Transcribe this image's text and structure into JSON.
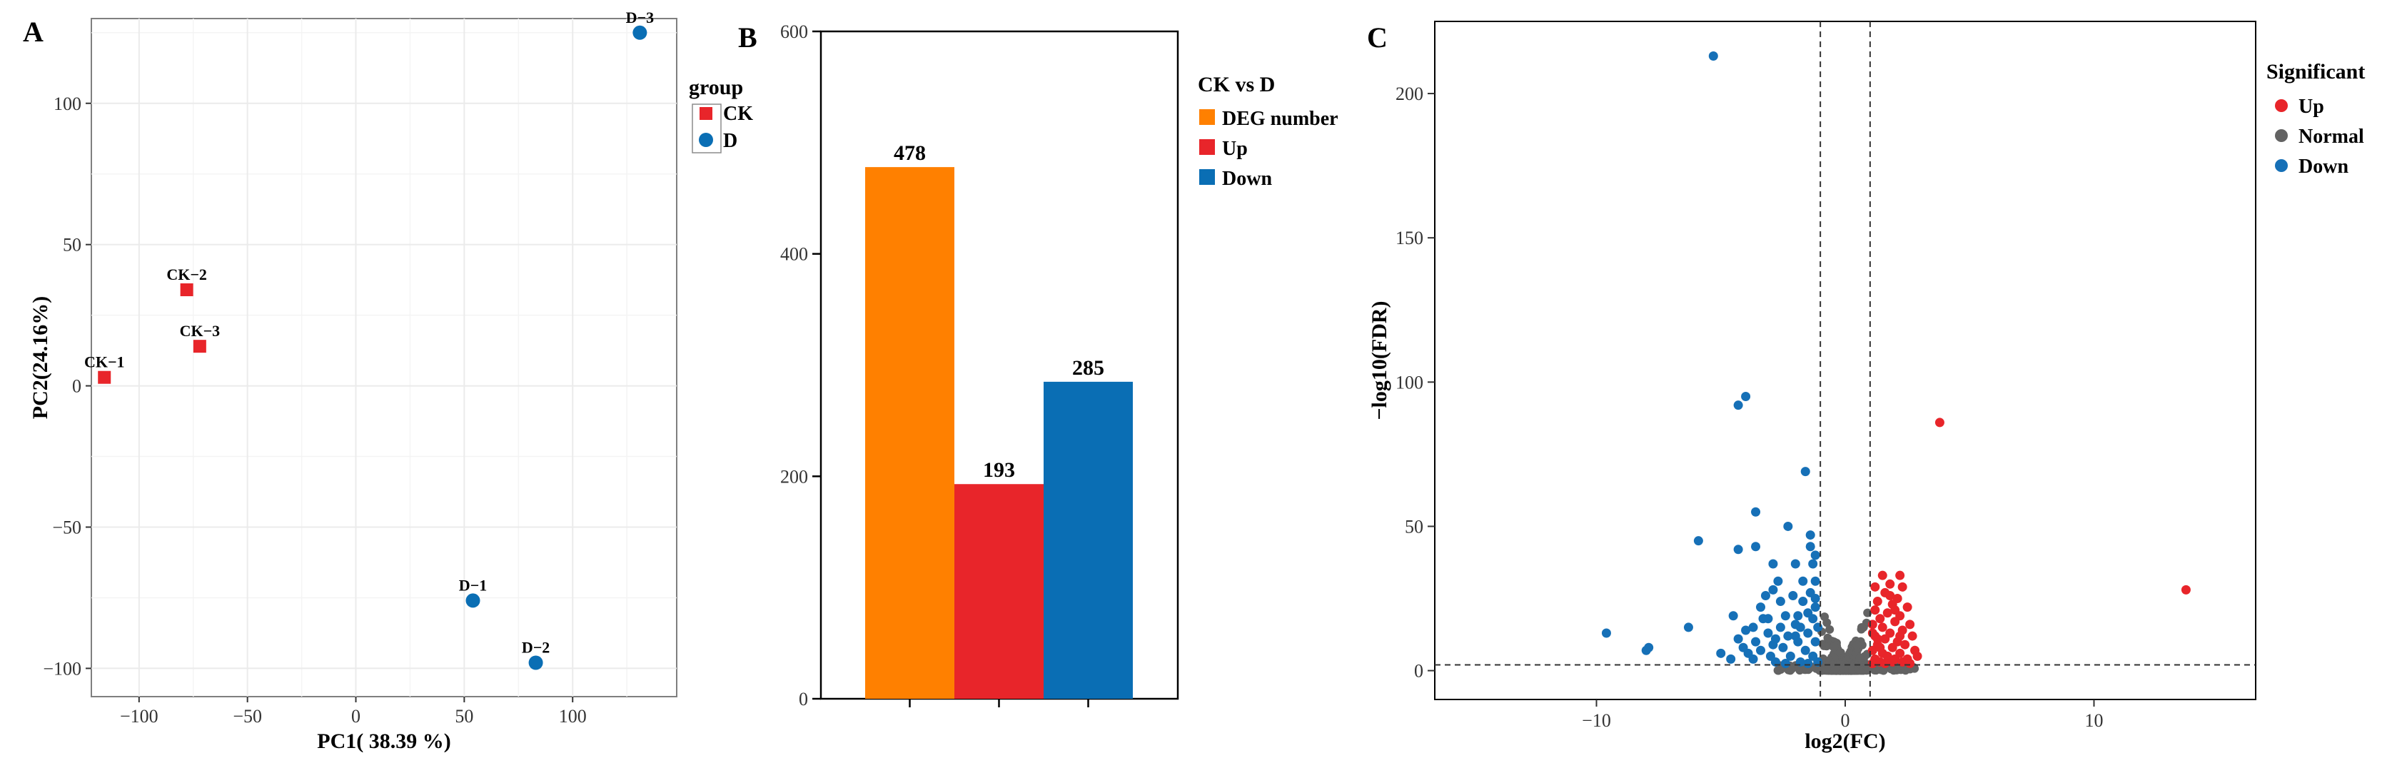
{
  "colors": {
    "ck": "#e8252a",
    "d": "#0a6eb4",
    "deg": "#ff8000",
    "up": "#e8252a",
    "down": "#0a6eb4",
    "normal": "#636363",
    "volcano_up": "#e8252a",
    "volcano_down": "#1670b7",
    "grid": "#ebebeb"
  },
  "panels": {
    "a": {
      "letter": "A"
    },
    "b": {
      "letter": "B"
    },
    "c": {
      "letter": "C"
    }
  },
  "chart_data": [
    {
      "id": "pca",
      "type": "scatter",
      "xlabel": "PC1( 38.39 %)",
      "ylabel": "PC2(24.16%)",
      "xlim": [
        -122,
        148
      ],
      "ylim": [
        -110,
        130
      ],
      "xticks": [
        -100,
        -50,
        0,
        50,
        100
      ],
      "yticks": [
        -100,
        -50,
        0,
        50,
        100
      ],
      "xtick_labels": [
        "−100",
        "−50",
        "0",
        "50",
        "100"
      ],
      "ytick_labels": [
        "−100",
        "−50",
        "0",
        "50",
        "100"
      ],
      "grid": true,
      "legend": {
        "title": "group",
        "position": "right",
        "entries": [
          "CK",
          "D"
        ]
      },
      "series": [
        {
          "name": "CK",
          "points": [
            {
              "label": "CK−1",
              "x": -116,
              "y": 3
            },
            {
              "label": "CK−2",
              "x": -78,
              "y": 34
            },
            {
              "label": "CK−3",
              "x": -72,
              "y": 14
            }
          ]
        },
        {
          "name": "D",
          "points": [
            {
              "label": "D−1",
              "x": 54,
              "y": -76
            },
            {
              "label": "D−2",
              "x": 83,
              "y": -98
            },
            {
              "label": "D−3",
              "x": 131,
              "y": 125
            }
          ]
        }
      ]
    },
    {
      "id": "deg-bars",
      "type": "bar",
      "categories": [
        "DEG number",
        "Up",
        "Down"
      ],
      "values": [
        478,
        193,
        285
      ],
      "value_labels": [
        "478",
        "193",
        "285"
      ],
      "ylim": [
        0,
        600
      ],
      "yticks": [
        0,
        200,
        400,
        600
      ],
      "ytick_labels": [
        "0",
        "200",
        "400",
        "600"
      ],
      "xlabel": "",
      "ylabel": "",
      "legend": {
        "title": "CK vs D",
        "position": "right",
        "entries": [
          "DEG number",
          "Up",
          "Down"
        ]
      }
    },
    {
      "id": "volcano",
      "type": "scatter",
      "xlabel": "log2(FC)",
      "ylabel": "−log10(FDR)",
      "xlim": [
        -16.5,
        16.5
      ],
      "ylim": [
        -10,
        225
      ],
      "xticks": [
        -10,
        0,
        10
      ],
      "yticks": [
        0,
        50,
        100,
        150,
        200
      ],
      "xtick_labels": [
        "−10",
        "0",
        "10"
      ],
      "ytick_labels": [
        "0",
        "50",
        "100",
        "150",
        "200"
      ],
      "thresholds": {
        "log2fc": [
          -1,
          1
        ],
        "neglog10fdr": 2
      },
      "legend": {
        "title": "Significant",
        "position": "top-right",
        "entries": [
          "Up",
          "Normal",
          "Down"
        ]
      },
      "series": [
        {
          "name": "Down",
          "points": [
            [
              -5.3,
              213
            ],
            [
              -4.3,
              92
            ],
            [
              -4.0,
              95
            ],
            [
              -1.6,
              69
            ],
            [
              -3.6,
              55
            ],
            [
              -2.3,
              50
            ],
            [
              -1.4,
              47
            ],
            [
              -5.9,
              45
            ],
            [
              -4.3,
              42
            ],
            [
              -3.6,
              43
            ],
            [
              -1.4,
              43
            ],
            [
              -1.2,
              40
            ],
            [
              -2.9,
              37
            ],
            [
              -2.0,
              37
            ],
            [
              -1.3,
              37
            ],
            [
              -2.7,
              31
            ],
            [
              -1.7,
              31
            ],
            [
              -1.2,
              31
            ],
            [
              -2.9,
              28
            ],
            [
              -3.2,
              26
            ],
            [
              -2.1,
              26
            ],
            [
              -1.4,
              27
            ],
            [
              -3.4,
              22
            ],
            [
              -2.6,
              24
            ],
            [
              -1.7,
              24
            ],
            [
              -1.2,
              22
            ],
            [
              -4.5,
              19
            ],
            [
              -3.1,
              18
            ],
            [
              -2.4,
              19
            ],
            [
              -1.5,
              20
            ],
            [
              -3.7,
              15
            ],
            [
              -2.0,
              16
            ],
            [
              -1.1,
              15
            ],
            [
              -6.3,
              15
            ],
            [
              -4.0,
              14
            ],
            [
              -3.1,
              13
            ],
            [
              -2.3,
              12
            ],
            [
              -1.5,
              13
            ],
            [
              -9.6,
              13
            ],
            [
              -4.3,
              11
            ],
            [
              -3.6,
              10
            ],
            [
              -2.8,
              11
            ],
            [
              -1.9,
              10
            ],
            [
              -1.2,
              10
            ],
            [
              -8.0,
              7
            ],
            [
              -4.1,
              8
            ],
            [
              -3.4,
              7
            ],
            [
              -2.5,
              8
            ],
            [
              -1.6,
              7
            ],
            [
              -5.0,
              6
            ],
            [
              -3.0,
              5
            ],
            [
              -2.2,
              5
            ],
            [
              -1.3,
              5
            ],
            [
              -4.6,
              4
            ],
            [
              -3.7,
              4
            ],
            [
              -2.8,
              3
            ],
            [
              -1.8,
              3
            ],
            [
              -1.1,
              3
            ],
            [
              -2.4,
              2.5
            ],
            [
              -1.5,
              2.5
            ],
            [
              -7.9,
              8
            ],
            [
              -3.3,
              18
            ],
            [
              -1.9,
              19
            ],
            [
              -2.6,
              15
            ],
            [
              -1.3,
              18
            ],
            [
              -3.9,
              6
            ],
            [
              -2.0,
              12
            ],
            [
              -1.2,
              25
            ],
            [
              -1.8,
              15
            ],
            [
              -2.9,
              9
            ]
          ]
        },
        {
          "name": "Up",
          "points": [
            [
              3.8,
              86
            ],
            [
              13.7,
              28
            ],
            [
              1.5,
              33
            ],
            [
              2.2,
              33
            ],
            [
              1.8,
              30
            ],
            [
              2.3,
              29
            ],
            [
              1.2,
              29
            ],
            [
              1.6,
              27
            ],
            [
              2.1,
              25
            ],
            [
              1.3,
              24
            ],
            [
              1.9,
              23
            ],
            [
              2.5,
              22
            ],
            [
              1.2,
              21
            ],
            [
              1.7,
              20
            ],
            [
              2.2,
              19
            ],
            [
              1.4,
              18
            ],
            [
              2.0,
              17
            ],
            [
              2.6,
              16
            ],
            [
              1.1,
              16
            ],
            [
              1.5,
              15
            ],
            [
              2.3,
              14
            ],
            [
              1.8,
              13
            ],
            [
              1.2,
              12
            ],
            [
              2.7,
              12
            ],
            [
              1.6,
              11
            ],
            [
              2.1,
              10
            ],
            [
              1.3,
              9
            ],
            [
              2.4,
              9
            ],
            [
              1.9,
              8
            ],
            [
              1.1,
              7
            ],
            [
              1.5,
              6
            ],
            [
              2.2,
              6
            ],
            [
              2.8,
              7
            ],
            [
              1.7,
              5
            ],
            [
              1.2,
              4
            ],
            [
              2.0,
              4
            ],
            [
              2.5,
              4
            ],
            [
              1.4,
              3
            ],
            [
              1.9,
              3
            ],
            [
              2.3,
              3
            ],
            [
              1.6,
              2.5
            ],
            [
              1.1,
              2.5
            ],
            [
              2.6,
              2.5
            ],
            [
              1.3,
              11
            ],
            [
              2.0,
              21
            ],
            [
              1.8,
              26
            ],
            [
              1.1,
              13
            ],
            [
              2.9,
              5
            ],
            [
              1.4,
              8
            ],
            [
              2.2,
              12
            ]
          ]
        }
      ]
    }
  ]
}
